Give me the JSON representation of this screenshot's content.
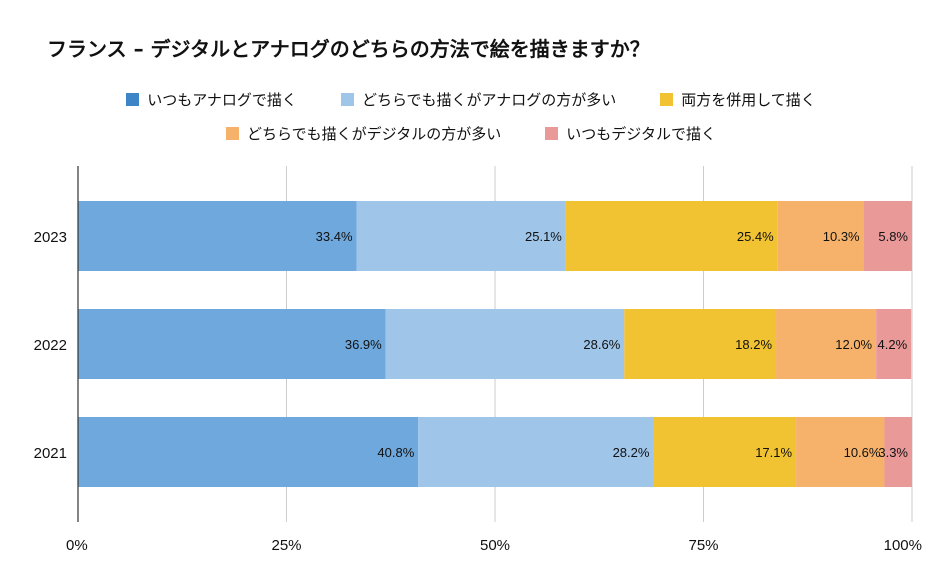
{
  "chart_data": {
    "type": "bar",
    "orientation": "horizontal-stacked",
    "title": "フランス – デジタルとアナログのどちらの方法で絵を描きますか？",
    "categories": [
      "2023",
      "2022",
      "2021"
    ],
    "series": [
      {
        "name": "いつもアナログで描く",
        "color": "#6fa8dc",
        "values": [
          33.4,
          36.9,
          40.8
        ],
        "labels": [
          "33.4%",
          "36.9%",
          "40.8%"
        ]
      },
      {
        "name": "どちらでも描くがアナログの方が多い",
        "color": "#9fc5e8",
        "values": [
          25.1,
          28.6,
          28.2
        ],
        "labels": [
          "25.1%",
          "28.6%",
          "28.2%"
        ]
      },
      {
        "name": "両方を併用して描く",
        "color": "#f1c232",
        "values": [
          25.4,
          18.2,
          17.1
        ],
        "labels": [
          "25.4%",
          "18.2%",
          "17.1%"
        ]
      },
      {
        "name": "どちらでも描くがデジタルの方が多い",
        "color": "#f6b26b",
        "values": [
          10.3,
          12.0,
          10.6
        ],
        "labels": [
          "10.3%",
          "12.0%",
          "10.6%"
        ]
      },
      {
        "name": "いつもデジタルで描く",
        "color": "#ea9999",
        "values": [
          5.8,
          4.2,
          3.3
        ],
        "labels": [
          "5.8%",
          "4.2%",
          "3.3%"
        ]
      }
    ],
    "legend_swatches": [
      "#3d85c6",
      "#9fc5e8",
      "#f1c232",
      "#f6b26b",
      "#ea9999"
    ],
    "xlim": [
      0,
      100
    ],
    "xticks": [
      0,
      25,
      50,
      75,
      100
    ],
    "xtick_labels": [
      "0%",
      "25%",
      "50%",
      "75%",
      "100%"
    ],
    "grid": true,
    "legend_position": "top"
  }
}
